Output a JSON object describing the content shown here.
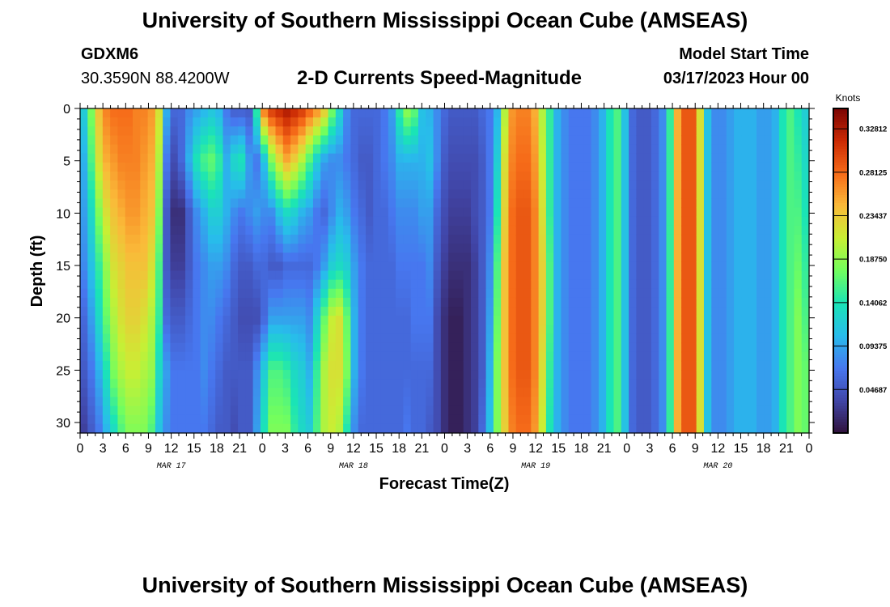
{
  "header": {
    "title": "University of Southern Mississippi Ocean Cube (AMSEAS)",
    "station": "GDXM6",
    "coords": "30.3590N  88.4200W",
    "subtitle": "2-D Currents Speed-Magnitude",
    "start_label": "Model Start Time",
    "start_value": "03/17/2023 Hour 00"
  },
  "footer": {
    "title": "University of Southern Mississippi Ocean Cube (AMSEAS)"
  },
  "chart_data": {
    "type": "heatmap",
    "title": "2-D Currents Speed-Magnitude",
    "xlabel": "Forecast Time(Z)",
    "ylabel": "Depth (ft)",
    "colorbar_label": "Knots",
    "xlim_hours": [
      0,
      96
    ],
    "ylim_ft": [
      0,
      31
    ],
    "y_ticks": [
      "0",
      "5",
      "10",
      "15",
      "20",
      "25",
      "30"
    ],
    "x_tick_labels": [
      "0",
      "3",
      "6",
      "9",
      "12",
      "15",
      "18",
      "21",
      "0",
      "3",
      "6",
      "9",
      "12",
      "15",
      "18",
      "21",
      "0",
      "3",
      "6",
      "9",
      "12",
      "15",
      "18",
      "21",
      "0",
      "3",
      "6",
      "9",
      "12",
      "15",
      "18",
      "21",
      "0"
    ],
    "date_labels": [
      "MAR 17",
      "MAR 18",
      "MAR 19",
      "MAR 20"
    ],
    "colorbar_ticks": [
      "0.32812",
      "0.28125",
      "0.23437",
      "0.18750",
      "0.14062",
      "0.09375",
      "0.04687"
    ],
    "colorbar_range": [
      0,
      0.35
    ],
    "colors": {
      "scale": [
        "#30123b",
        "#4146a8",
        "#4777ef",
        "#28bceb",
        "#1ae4b6",
        "#72fe5e",
        "#c8ef34",
        "#faba39",
        "#f66b19",
        "#cb2a04",
        "#7a0403"
      ],
      "background": "#ffffff",
      "axis": "#000000"
    },
    "speed_profile": {
      "time_hours": [
        0,
        1,
        2,
        3,
        4,
        5,
        6,
        7,
        8,
        9,
        10,
        11,
        12,
        13,
        14,
        15,
        16,
        17,
        18,
        19,
        20,
        21,
        22,
        23,
        24,
        25,
        26,
        27,
        28,
        29,
        30,
        31,
        32,
        33,
        34,
        35,
        36,
        37,
        38,
        39,
        40,
        41,
        42,
        43,
        44,
        45,
        46,
        47,
        48,
        49,
        50,
        51,
        52,
        53,
        54,
        55,
        56,
        57,
        58,
        59,
        60,
        61,
        62,
        63,
        64,
        65,
        66,
        67,
        68,
        69,
        70,
        71,
        72,
        73,
        74,
        75,
        76,
        77,
        78,
        79,
        80,
        81,
        82,
        83,
        84,
        85,
        86,
        87,
        88,
        89,
        90,
        91,
        92,
        93,
        94,
        95,
        96
      ],
      "depth_ft": [
        0,
        5,
        10,
        15,
        20,
        25,
        31
      ],
      "speed_knots": [
        [
          0.12,
          0.1,
          0.09,
          0.08,
          0.06,
          0.05,
          0.03
        ],
        [
          0.18,
          0.16,
          0.13,
          0.11,
          0.09,
          0.07,
          0.05
        ],
        [
          0.24,
          0.22,
          0.18,
          0.15,
          0.13,
          0.1,
          0.07
        ],
        [
          0.27,
          0.25,
          0.22,
          0.19,
          0.17,
          0.14,
          0.1
        ],
        [
          0.28,
          0.26,
          0.24,
          0.22,
          0.2,
          0.18,
          0.13
        ],
        [
          0.28,
          0.27,
          0.25,
          0.23,
          0.22,
          0.2,
          0.16
        ],
        [
          0.28,
          0.27,
          0.26,
          0.24,
          0.23,
          0.21,
          0.18
        ],
        [
          0.27,
          0.27,
          0.26,
          0.24,
          0.23,
          0.21,
          0.18
        ],
        [
          0.27,
          0.26,
          0.25,
          0.24,
          0.22,
          0.2,
          0.18
        ],
        [
          0.26,
          0.25,
          0.24,
          0.22,
          0.2,
          0.19,
          0.16
        ],
        [
          0.22,
          0.2,
          0.18,
          0.16,
          0.15,
          0.13,
          0.11
        ],
        [
          0.1,
          0.07,
          0.05,
          0.05,
          0.06,
          0.09,
          0.08
        ],
        [
          0.06,
          0.04,
          0.02,
          0.03,
          0.05,
          0.07,
          0.07
        ],
        [
          0.06,
          0.06,
          0.02,
          0.03,
          0.05,
          0.07,
          0.07
        ],
        [
          0.08,
          0.1,
          0.05,
          0.05,
          0.06,
          0.07,
          0.07
        ],
        [
          0.09,
          0.14,
          0.08,
          0.07,
          0.07,
          0.07,
          0.07
        ],
        [
          0.1,
          0.16,
          0.1,
          0.08,
          0.08,
          0.08,
          0.07
        ],
        [
          0.11,
          0.17,
          0.12,
          0.09,
          0.08,
          0.07,
          0.06
        ],
        [
          0.1,
          0.15,
          0.12,
          0.09,
          0.07,
          0.06,
          0.05
        ],
        [
          0.07,
          0.1,
          0.1,
          0.08,
          0.06,
          0.05,
          0.05
        ],
        [
          0.05,
          0.13,
          0.08,
          0.06,
          0.05,
          0.05,
          0.04
        ],
        [
          0.05,
          0.14,
          0.07,
          0.05,
          0.04,
          0.05,
          0.05
        ],
        [
          0.05,
          0.09,
          0.08,
          0.05,
          0.04,
          0.05,
          0.05
        ],
        [
          0.15,
          0.07,
          0.09,
          0.06,
          0.04,
          0.08,
          0.09
        ],
        [
          0.28,
          0.11,
          0.08,
          0.06,
          0.06,
          0.12,
          0.14
        ],
        [
          0.31,
          0.18,
          0.08,
          0.05,
          0.09,
          0.16,
          0.18
        ],
        [
          0.32,
          0.22,
          0.11,
          0.05,
          0.09,
          0.16,
          0.18
        ],
        [
          0.33,
          0.25,
          0.13,
          0.06,
          0.09,
          0.15,
          0.18
        ],
        [
          0.32,
          0.23,
          0.12,
          0.06,
          0.09,
          0.13,
          0.15
        ],
        [
          0.31,
          0.2,
          0.1,
          0.06,
          0.09,
          0.12,
          0.13
        ],
        [
          0.29,
          0.16,
          0.09,
          0.06,
          0.08,
          0.1,
          0.12
        ],
        [
          0.27,
          0.12,
          0.07,
          0.07,
          0.12,
          0.15,
          0.16
        ],
        [
          0.24,
          0.09,
          0.06,
          0.09,
          0.17,
          0.2,
          0.2
        ],
        [
          0.18,
          0.08,
          0.08,
          0.12,
          0.21,
          0.22,
          0.21
        ],
        [
          0.13,
          0.08,
          0.1,
          0.13,
          0.22,
          0.22,
          0.2
        ],
        [
          0.08,
          0.07,
          0.09,
          0.12,
          0.17,
          0.18,
          0.14
        ],
        [
          0.06,
          0.06,
          0.07,
          0.09,
          0.1,
          0.1,
          0.08
        ],
        [
          0.06,
          0.05,
          0.06,
          0.07,
          0.07,
          0.07,
          0.06
        ],
        [
          0.06,
          0.05,
          0.05,
          0.06,
          0.06,
          0.06,
          0.06
        ],
        [
          0.06,
          0.06,
          0.06,
          0.06,
          0.06,
          0.06,
          0.06
        ],
        [
          0.07,
          0.07,
          0.06,
          0.06,
          0.06,
          0.06,
          0.06
        ],
        [
          0.09,
          0.08,
          0.07,
          0.06,
          0.06,
          0.06,
          0.06
        ],
        [
          0.15,
          0.1,
          0.08,
          0.07,
          0.06,
          0.06,
          0.06
        ],
        [
          0.19,
          0.1,
          0.08,
          0.07,
          0.06,
          0.06,
          0.07
        ],
        [
          0.17,
          0.1,
          0.08,
          0.07,
          0.07,
          0.06,
          0.06
        ],
        [
          0.11,
          0.1,
          0.09,
          0.07,
          0.07,
          0.06,
          0.06
        ],
        [
          0.1,
          0.11,
          0.09,
          0.08,
          0.07,
          0.06,
          0.05
        ],
        [
          0.08,
          0.08,
          0.06,
          0.05,
          0.04,
          0.04,
          0.04
        ],
        [
          0.06,
          0.05,
          0.04,
          0.03,
          0.02,
          0.02,
          0.02
        ],
        [
          0.05,
          0.04,
          0.03,
          0.02,
          0.01,
          0.01,
          0.01
        ],
        [
          0.05,
          0.04,
          0.03,
          0.02,
          0.01,
          0.01,
          0.01
        ],
        [
          0.05,
          0.04,
          0.03,
          0.02,
          0.02,
          0.02,
          0.02
        ],
        [
          0.05,
          0.04,
          0.04,
          0.03,
          0.03,
          0.03,
          0.03
        ],
        [
          0.06,
          0.05,
          0.05,
          0.05,
          0.05,
          0.05,
          0.06
        ],
        [
          0.07,
          0.07,
          0.07,
          0.08,
          0.09,
          0.1,
          0.11
        ],
        [
          0.1,
          0.12,
          0.14,
          0.16,
          0.17,
          0.18,
          0.18
        ],
        [
          0.2,
          0.22,
          0.23,
          0.24,
          0.24,
          0.24,
          0.23
        ],
        [
          0.26,
          0.27,
          0.28,
          0.28,
          0.28,
          0.28,
          0.27
        ],
        [
          0.27,
          0.28,
          0.29,
          0.29,
          0.29,
          0.29,
          0.28
        ],
        [
          0.27,
          0.28,
          0.29,
          0.29,
          0.29,
          0.29,
          0.28
        ],
        [
          0.25,
          0.26,
          0.27,
          0.27,
          0.27,
          0.27,
          0.26
        ],
        [
          0.2,
          0.21,
          0.22,
          0.23,
          0.23,
          0.22,
          0.21
        ],
        [
          0.15,
          0.15,
          0.15,
          0.16,
          0.16,
          0.15,
          0.14
        ],
        [
          0.1,
          0.1,
          0.1,
          0.1,
          0.1,
          0.1,
          0.1
        ],
        [
          0.08,
          0.08,
          0.08,
          0.08,
          0.08,
          0.08,
          0.08
        ],
        [
          0.07,
          0.07,
          0.07,
          0.07,
          0.07,
          0.07,
          0.07
        ],
        [
          0.07,
          0.07,
          0.07,
          0.07,
          0.07,
          0.07,
          0.07
        ],
        [
          0.07,
          0.07,
          0.07,
          0.07,
          0.07,
          0.07,
          0.07
        ],
        [
          0.08,
          0.08,
          0.08,
          0.08,
          0.08,
          0.08,
          0.08
        ],
        [
          0.1,
          0.1,
          0.1,
          0.1,
          0.1,
          0.1,
          0.1
        ],
        [
          0.14,
          0.14,
          0.14,
          0.14,
          0.14,
          0.14,
          0.14
        ],
        [
          0.16,
          0.16,
          0.16,
          0.16,
          0.16,
          0.16,
          0.16
        ],
        [
          0.11,
          0.11,
          0.11,
          0.11,
          0.11,
          0.11,
          0.11
        ],
        [
          0.06,
          0.06,
          0.06,
          0.06,
          0.06,
          0.06,
          0.06
        ],
        [
          0.05,
          0.05,
          0.05,
          0.05,
          0.05,
          0.05,
          0.05
        ],
        [
          0.05,
          0.05,
          0.05,
          0.05,
          0.05,
          0.05,
          0.05
        ],
        [
          0.06,
          0.06,
          0.06,
          0.06,
          0.06,
          0.06,
          0.06
        ],
        [
          0.08,
          0.08,
          0.08,
          0.08,
          0.08,
          0.08,
          0.08
        ],
        [
          0.15,
          0.15,
          0.15,
          0.15,
          0.15,
          0.15,
          0.15
        ],
        [
          0.25,
          0.25,
          0.25,
          0.25,
          0.25,
          0.25,
          0.25
        ],
        [
          0.29,
          0.29,
          0.29,
          0.29,
          0.29,
          0.29,
          0.29
        ],
        [
          0.29,
          0.29,
          0.29,
          0.29,
          0.29,
          0.29,
          0.29
        ],
        [
          0.22,
          0.22,
          0.22,
          0.22,
          0.22,
          0.22,
          0.22
        ],
        [
          0.11,
          0.11,
          0.11,
          0.11,
          0.11,
          0.11,
          0.11
        ],
        [
          0.08,
          0.08,
          0.08,
          0.08,
          0.08,
          0.08,
          0.08
        ],
        [
          0.08,
          0.08,
          0.08,
          0.08,
          0.08,
          0.08,
          0.08
        ],
        [
          0.09,
          0.09,
          0.09,
          0.09,
          0.09,
          0.09,
          0.09
        ],
        [
          0.1,
          0.1,
          0.1,
          0.1,
          0.1,
          0.1,
          0.1
        ],
        [
          0.1,
          0.1,
          0.1,
          0.1,
          0.1,
          0.1,
          0.1
        ],
        [
          0.1,
          0.1,
          0.1,
          0.1,
          0.1,
          0.1,
          0.1
        ],
        [
          0.09,
          0.09,
          0.09,
          0.09,
          0.09,
          0.09,
          0.09
        ],
        [
          0.09,
          0.09,
          0.09,
          0.09,
          0.09,
          0.09,
          0.09
        ],
        [
          0.1,
          0.1,
          0.1,
          0.1,
          0.1,
          0.1,
          0.1
        ],
        [
          0.14,
          0.14,
          0.14,
          0.14,
          0.14,
          0.14,
          0.14
        ],
        [
          0.16,
          0.16,
          0.16,
          0.16,
          0.16,
          0.16,
          0.16
        ],
        [
          0.14,
          0.15,
          0.16,
          0.17,
          0.18,
          0.18,
          0.18
        ],
        [
          0.12,
          0.13,
          0.14,
          0.15,
          0.16,
          0.17,
          0.17
        ]
      ]
    }
  }
}
